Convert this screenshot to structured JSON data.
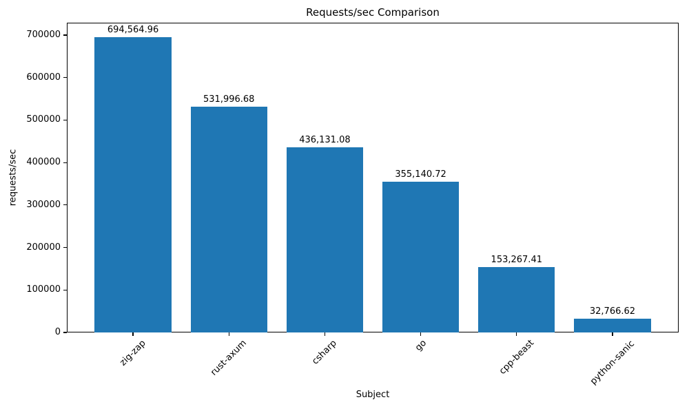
{
  "chart_data": {
    "type": "bar",
    "title": "Requests/sec Comparison",
    "xlabel": "Subject",
    "ylabel": "requests/sec",
    "categories": [
      "zig-zap",
      "rust-axum",
      "csharp",
      "go",
      "cpp-beast",
      "python-sanic"
    ],
    "values": [
      694564.96,
      531996.68,
      436131.08,
      355140.72,
      153267.41,
      32766.62
    ],
    "value_labels": [
      "694,564.96",
      "531,996.68",
      "436,131.08",
      "355,140.72",
      "153,267.41",
      "32,766.62"
    ],
    "yticks": [
      0,
      100000,
      200000,
      300000,
      400000,
      500000,
      600000,
      700000
    ],
    "ylim": [
      0,
      729293
    ],
    "bar_color": "#1f77b4",
    "background": "#ffffff",
    "text_color": "#000000",
    "x_tick_rotation": 45,
    "grid": false,
    "legend": false
  }
}
